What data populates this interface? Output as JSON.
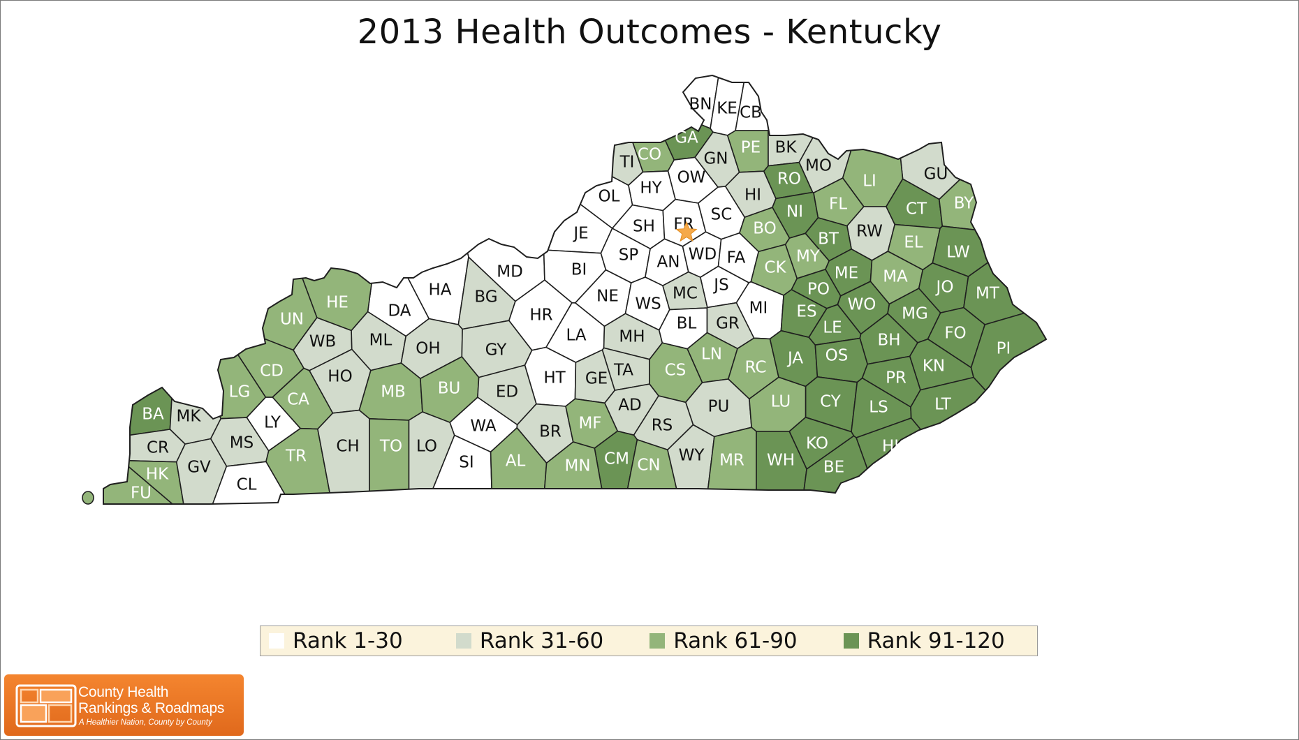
{
  "title": "2013 Health Outcomes - Kentucky",
  "colors": {
    "r1": "#ffffff",
    "r2": "#d2dbcc",
    "r3": "#93b57a",
    "r4": "#6b9455",
    "state_capital": "#f5a94a"
  },
  "legend": [
    {
      "label": "Rank 1-30",
      "color": "#ffffff"
    },
    {
      "label": "Rank 31-60",
      "color": "#d2dbcc"
    },
    {
      "label": "Rank 61-90",
      "color": "#93b57a"
    },
    {
      "label": "Rank 91-120",
      "color": "#6b9455"
    }
  ],
  "counties": [
    {
      "code": "BN",
      "rank": "1-30"
    },
    {
      "code": "KE",
      "rank": "1-30"
    },
    {
      "code": "CB",
      "rank": "1-30"
    },
    {
      "code": "GA",
      "rank": "91-120"
    },
    {
      "code": "CO",
      "rank": "61-90"
    },
    {
      "code": "TI",
      "rank": "31-60"
    },
    {
      "code": "GN",
      "rank": "31-60"
    },
    {
      "code": "PE",
      "rank": "61-90"
    },
    {
      "code": "BK",
      "rank": "31-60"
    },
    {
      "code": "MO",
      "rank": "31-60"
    },
    {
      "code": "GU",
      "rank": "31-60"
    },
    {
      "code": "LI",
      "rank": "61-90"
    },
    {
      "code": "OW",
      "rank": "1-30"
    },
    {
      "code": "HY",
      "rank": "1-30"
    },
    {
      "code": "OL",
      "rank": "1-30"
    },
    {
      "code": "HI",
      "rank": "31-60"
    },
    {
      "code": "RO",
      "rank": "91-120"
    },
    {
      "code": "NI",
      "rank": "91-120"
    },
    {
      "code": "FL",
      "rank": "61-90"
    },
    {
      "code": "CT",
      "rank": "91-120"
    },
    {
      "code": "BY",
      "rank": "61-90"
    },
    {
      "code": "RW",
      "rank": "31-60"
    },
    {
      "code": "EL",
      "rank": "61-90"
    },
    {
      "code": "JE",
      "rank": "1-30"
    },
    {
      "code": "SH",
      "rank": "1-30"
    },
    {
      "code": "FR",
      "rank": "1-30"
    },
    {
      "code": "SC",
      "rank": "1-30"
    },
    {
      "code": "BO",
      "rank": "61-90"
    },
    {
      "code": "BT",
      "rank": "91-120"
    },
    {
      "code": "LW",
      "rank": "91-120"
    },
    {
      "code": "MD",
      "rank": "1-30"
    },
    {
      "code": "HA",
      "rank": "1-30"
    },
    {
      "code": "BI",
      "rank": "1-30"
    },
    {
      "code": "SP",
      "rank": "1-30"
    },
    {
      "code": "AN",
      "rank": "1-30"
    },
    {
      "code": "WD",
      "rank": "1-30"
    },
    {
      "code": "FA",
      "rank": "1-30"
    },
    {
      "code": "CK",
      "rank": "61-90"
    },
    {
      "code": "MY",
      "rank": "61-90"
    },
    {
      "code": "ME",
      "rank": "91-120"
    },
    {
      "code": "MA",
      "rank": "61-90"
    },
    {
      "code": "JO",
      "rank": "91-120"
    },
    {
      "code": "MT",
      "rank": "91-120"
    },
    {
      "code": "DA",
      "rank": "1-30"
    },
    {
      "code": "HE",
      "rank": "61-90"
    },
    {
      "code": "BG",
      "rank": "31-60"
    },
    {
      "code": "HR",
      "rank": "1-30"
    },
    {
      "code": "NE",
      "rank": "1-30"
    },
    {
      "code": "WS",
      "rank": "1-30"
    },
    {
      "code": "MC",
      "rank": "31-60"
    },
    {
      "code": "JS",
      "rank": "1-30"
    },
    {
      "code": "MI",
      "rank": "1-30"
    },
    {
      "code": "PO",
      "rank": "91-120"
    },
    {
      "code": "WO",
      "rank": "91-120"
    },
    {
      "code": "ES",
      "rank": "91-120"
    },
    {
      "code": "MG",
      "rank": "91-120"
    },
    {
      "code": "UN",
      "rank": "61-90"
    },
    {
      "code": "WB",
      "rank": "31-60"
    },
    {
      "code": "ML",
      "rank": "31-60"
    },
    {
      "code": "OH",
      "rank": "31-60"
    },
    {
      "code": "GY",
      "rank": "31-60"
    },
    {
      "code": "LA",
      "rank": "1-30"
    },
    {
      "code": "MH",
      "rank": "31-60"
    },
    {
      "code": "BL",
      "rank": "1-30"
    },
    {
      "code": "GR",
      "rank": "31-60"
    },
    {
      "code": "LE",
      "rank": "91-120"
    },
    {
      "code": "FO",
      "rank": "91-120"
    },
    {
      "code": "BH",
      "rank": "91-120"
    },
    {
      "code": "PI",
      "rank": "91-120"
    },
    {
      "code": "CD",
      "rank": "61-90"
    },
    {
      "code": "HO",
      "rank": "31-60"
    },
    {
      "code": "HT",
      "rank": "1-30"
    },
    {
      "code": "GE",
      "rank": "31-60"
    },
    {
      "code": "TA",
      "rank": "31-60"
    },
    {
      "code": "CS",
      "rank": "61-90"
    },
    {
      "code": "LN",
      "rank": "61-90"
    },
    {
      "code": "RC",
      "rank": "61-90"
    },
    {
      "code": "JA",
      "rank": "91-120"
    },
    {
      "code": "OS",
      "rank": "91-120"
    },
    {
      "code": "KN",
      "rank": "91-120"
    },
    {
      "code": "LG",
      "rank": "61-90"
    },
    {
      "code": "CA",
      "rank": "61-90"
    },
    {
      "code": "MB",
      "rank": "61-90"
    },
    {
      "code": "BU",
      "rank": "61-90"
    },
    {
      "code": "ED",
      "rank": "31-60"
    },
    {
      "code": "AD",
      "rank": "31-60"
    },
    {
      "code": "PU",
      "rank": "31-60"
    },
    {
      "code": "PR",
      "rank": "91-120"
    },
    {
      "code": "BA",
      "rank": "91-120"
    },
    {
      "code": "MK",
      "rank": "31-60"
    },
    {
      "code": "LY",
      "rank": "1-30"
    },
    {
      "code": "CY",
      "rank": "91-120"
    },
    {
      "code": "LS",
      "rank": "91-120"
    },
    {
      "code": "LU",
      "rank": "61-90"
    },
    {
      "code": "LT",
      "rank": "91-120"
    },
    {
      "code": "CR",
      "rank": "31-60"
    },
    {
      "code": "MS",
      "rank": "31-60"
    },
    {
      "code": "TR",
      "rank": "61-90"
    },
    {
      "code": "CH",
      "rank": "31-60"
    },
    {
      "code": "TO",
      "rank": "61-90"
    },
    {
      "code": "LO",
      "rank": "31-60"
    },
    {
      "code": "WA",
      "rank": "1-30"
    },
    {
      "code": "BR",
      "rank": "31-60"
    },
    {
      "code": "MF",
      "rank": "61-90"
    },
    {
      "code": "RS",
      "rank": "31-60"
    },
    {
      "code": "KO",
      "rank": "91-120"
    },
    {
      "code": "HL",
      "rank": "91-120"
    },
    {
      "code": "HK",
      "rank": "61-90"
    },
    {
      "code": "GV",
      "rank": "31-60"
    },
    {
      "code": "SI",
      "rank": "1-30"
    },
    {
      "code": "AL",
      "rank": "61-90"
    },
    {
      "code": "CM",
      "rank": "91-120"
    },
    {
      "code": "MN",
      "rank": "61-90"
    },
    {
      "code": "CN",
      "rank": "61-90"
    },
    {
      "code": "WY",
      "rank": "31-60"
    },
    {
      "code": "MR",
      "rank": "61-90"
    },
    {
      "code": "WH",
      "rank": "91-120"
    },
    {
      "code": "BE",
      "rank": "91-120"
    },
    {
      "code": "FU",
      "rank": "61-90"
    },
    {
      "code": "CL",
      "rank": "1-30"
    }
  ],
  "logo": {
    "line1": "County Health",
    "line2": "Rankings & Roadmaps",
    "tagline": "A Healthier Nation, County by County"
  }
}
